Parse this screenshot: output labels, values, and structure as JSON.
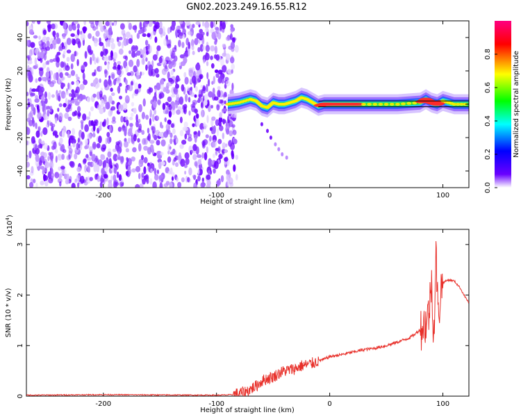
{
  "figure": {
    "title": "GN02.2023.249.16.55.R12"
  },
  "colors": {
    "snr_line": "#e8302a",
    "dark_ridge": "#000000",
    "colorbar_stops": [
      "#ffffff",
      "#6a00ff",
      "#0000ff",
      "#00ffff",
      "#00ff00",
      "#ffff00",
      "#ff0000",
      "#ff0080"
    ]
  },
  "chart_data": [
    {
      "type": "heatmap",
      "title": "",
      "xlabel": "Height of straight line (km)",
      "ylabel": "Frequency (Hz)",
      "xlim": [
        -268,
        123
      ],
      "ylim": [
        -50,
        50
      ],
      "xticks": [
        -200,
        -100,
        0,
        100
      ],
      "yticks": [
        -40,
        -20,
        0,
        20,
        40
      ],
      "noise_region_x": [
        -268,
        -82
      ],
      "ridge": {
        "x": [
          -90,
          -80,
          -70,
          -65,
          -60,
          -55,
          -50,
          -45,
          -40,
          -35,
          -30,
          -25,
          -20,
          -15,
          -10,
          -5,
          0,
          20,
          40,
          60,
          80,
          85,
          90,
          95,
          100,
          110,
          123
        ],
        "y": [
          0,
          1,
          3,
          2,
          -1,
          -2,
          1,
          0,
          0,
          1,
          2,
          4,
          3,
          1,
          -1,
          0,
          0,
          0,
          0,
          0,
          1,
          3,
          1,
          0,
          2,
          0,
          0
        ]
      },
      "scatter_tail": {
        "x": [
          -60,
          -55,
          -52,
          -48,
          -45,
          -42,
          -38
        ],
        "y": [
          -12,
          -16,
          -20,
          -24,
          -27,
          -30,
          -32
        ]
      },
      "colorbar": {
        "label": "Normalized spectral amplitude",
        "range": [
          0,
          1
        ],
        "ticks": [
          0.0,
          0.2,
          0.4,
          0.6,
          0.8
        ],
        "tick_labels": [
          "0.0",
          "0.2",
          "0.4",
          "0.6",
          "0.8"
        ]
      }
    },
    {
      "type": "line",
      "title": "",
      "xlabel": "Height of straight line (km)",
      "ylabel": "SNR (10 * v/v)",
      "multiplier_label": "(x10",
      "multiplier_exp": "4",
      "multiplier_close": ")",
      "xlim": [
        -268,
        123
      ],
      "ylim": [
        0,
        3.3
      ],
      "xticks": [
        -200,
        -100,
        0,
        100
      ],
      "yticks": [
        0,
        1,
        2,
        3
      ],
      "series": [
        {
          "x": [
            -268,
            -200,
            -100,
            -85,
            -75,
            -65,
            -60,
            -55,
            -50,
            -45,
            -40,
            -35,
            -30,
            -25,
            -20,
            -15,
            -10,
            -5,
            0,
            10,
            20,
            30,
            40,
            50,
            60,
            70,
            75,
            80,
            85,
            88,
            90,
            92,
            94,
            96,
            98,
            100,
            105,
            110,
            115,
            120,
            123
          ],
          "y": [
            0.02,
            0.03,
            0.02,
            0.03,
            0.08,
            0.2,
            0.3,
            0.35,
            0.38,
            0.45,
            0.5,
            0.52,
            0.55,
            0.6,
            0.62,
            0.65,
            0.7,
            0.73,
            0.78,
            0.82,
            0.87,
            0.92,
            0.95,
            1.0,
            1.07,
            1.15,
            1.22,
            1.32,
            1.45,
            1.7,
            2.3,
            1.2,
            2.8,
            1.5,
            2.1,
            2.25,
            2.3,
            2.28,
            2.15,
            1.95,
            1.85
          ]
        }
      ]
    }
  ]
}
